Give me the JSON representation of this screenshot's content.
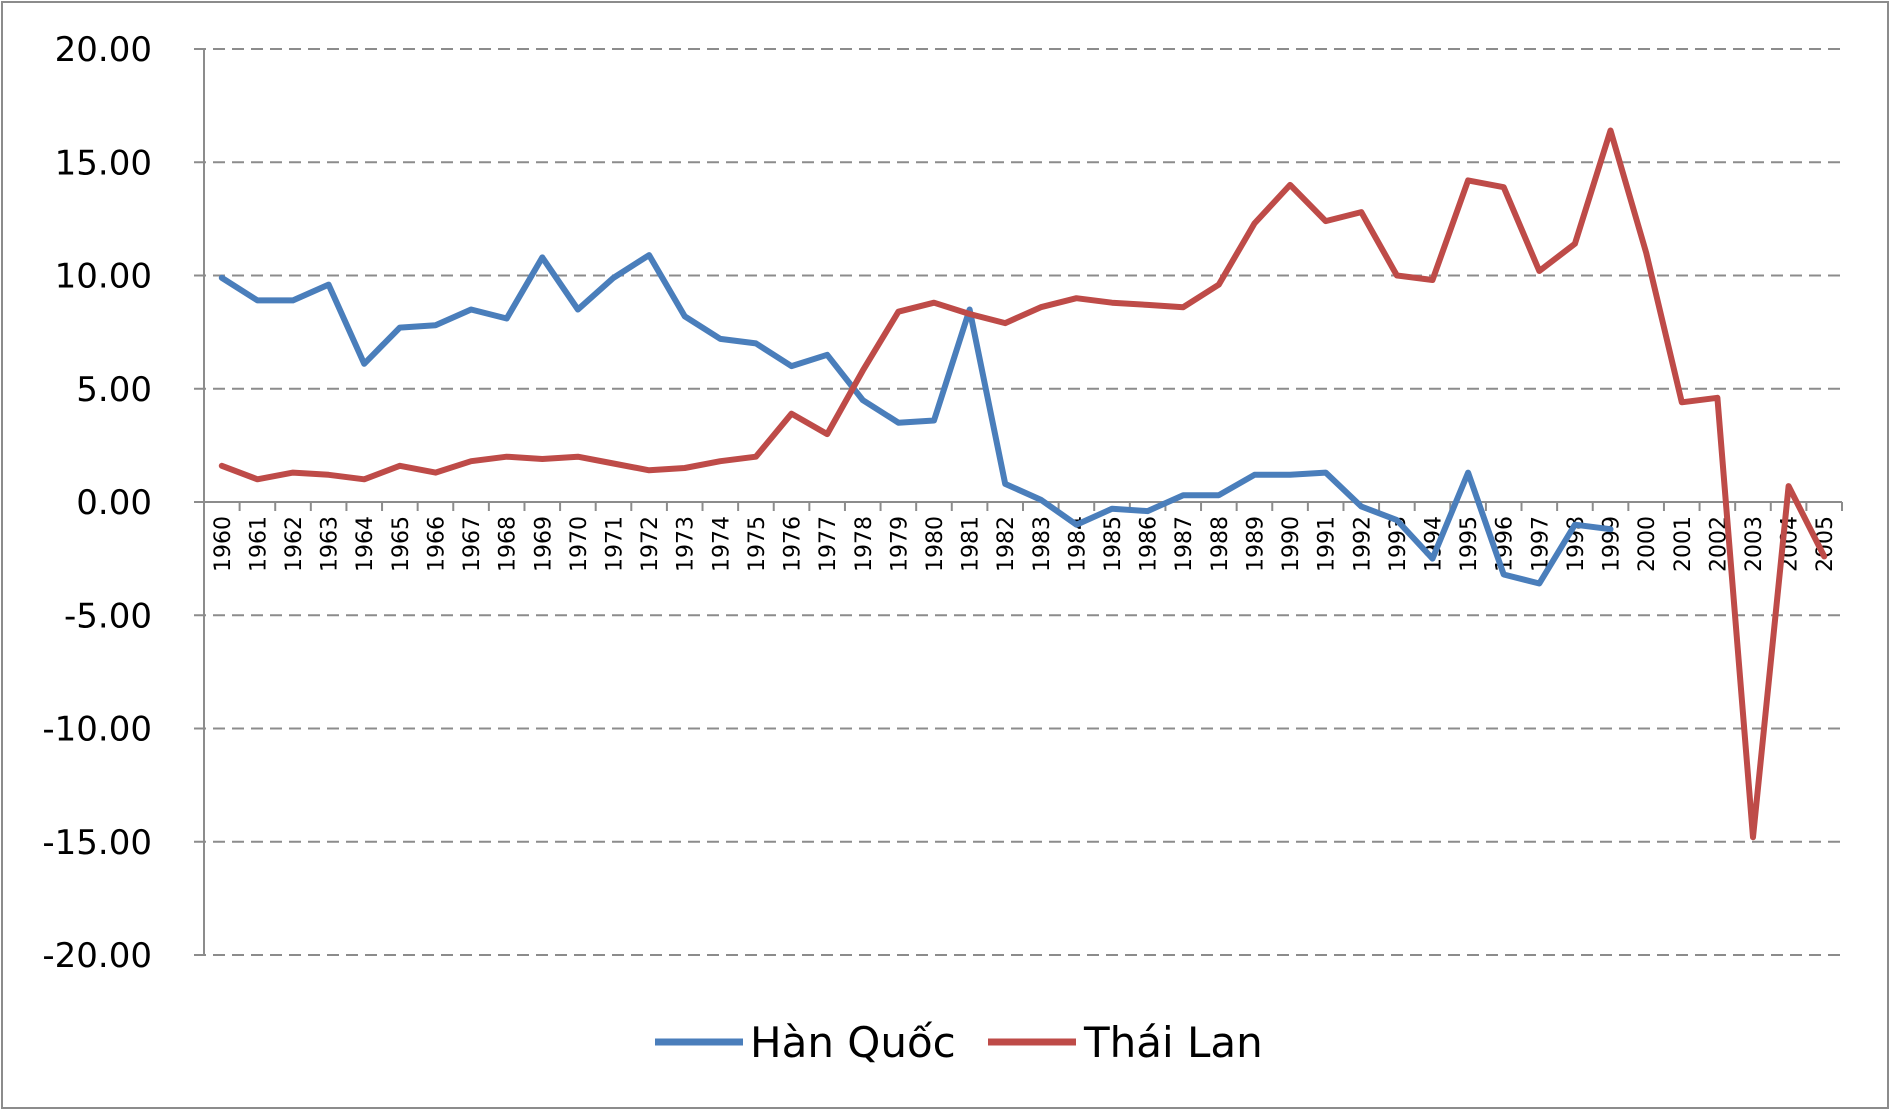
{
  "chart_data": {
    "type": "line",
    "title": "",
    "xlabel": "",
    "ylabel": "",
    "ylim": [
      -20,
      20
    ],
    "y_ticks": [
      "20.00",
      "15.00",
      "10.00",
      "5.00",
      "0.00",
      "-5.00",
      "-10.00",
      "-15.00",
      "-20.00"
    ],
    "y_tick_values": [
      20,
      15,
      10,
      5,
      0,
      -5,
      -10,
      -15,
      -20
    ],
    "grid": true,
    "legend_position": "bottom",
    "categories": [
      "1960",
      "1961",
      "1962",
      "1963",
      "1964",
      "1965",
      "1966",
      "1967",
      "1968",
      "1969",
      "1970",
      "1971",
      "1972",
      "1973",
      "1974",
      "1975",
      "1976",
      "1977",
      "1978",
      "1979",
      "1980",
      "1981",
      "1982",
      "1983",
      "1984",
      "1985",
      "1986",
      "1987",
      "1988",
      "1989",
      "1990",
      "1991",
      "1992",
      "1993",
      "1994",
      "1995",
      "1996",
      "1997",
      "1998",
      "1999",
      "2000",
      "2001",
      "2002",
      "2003",
      "2004",
      "2005"
    ],
    "series": [
      {
        "name": "Hàn Quốc",
        "color": "#4a7ebb",
        "values": [
          9.9,
          8.9,
          8.9,
          9.6,
          6.1,
          7.7,
          7.8,
          8.5,
          8.1,
          10.8,
          8.5,
          9.9,
          10.9,
          8.2,
          7.2,
          7.0,
          6.0,
          6.5,
          4.5,
          3.5,
          3.6,
          8.5,
          0.8,
          0.1,
          -1.0,
          -0.3,
          -0.4,
          0.3,
          0.3,
          1.2,
          1.2,
          1.3,
          -0.2,
          -0.8,
          -2.5,
          1.3,
          -3.2,
          -3.6,
          -1.0,
          -1.2,
          null,
          null,
          null,
          null,
          null,
          null
        ]
      },
      {
        "name": "Thái Lan",
        "color": "#be4b48",
        "values": [
          1.6,
          1.0,
          1.3,
          1.2,
          1.0,
          1.6,
          1.3,
          1.8,
          2.0,
          1.9,
          2.0,
          1.7,
          1.4,
          1.5,
          1.8,
          2.0,
          3.9,
          3.0,
          5.8,
          8.4,
          8.8,
          8.3,
          7.9,
          8.6,
          9.0,
          8.8,
          8.7,
          8.6,
          9.6,
          12.3,
          14.0,
          12.4,
          12.8,
          10.0,
          9.8,
          14.2,
          13.9,
          10.2,
          11.4,
          16.4,
          11.0,
          4.4,
          4.6,
          -14.8,
          0.7,
          -2.4
        ]
      }
    ]
  }
}
